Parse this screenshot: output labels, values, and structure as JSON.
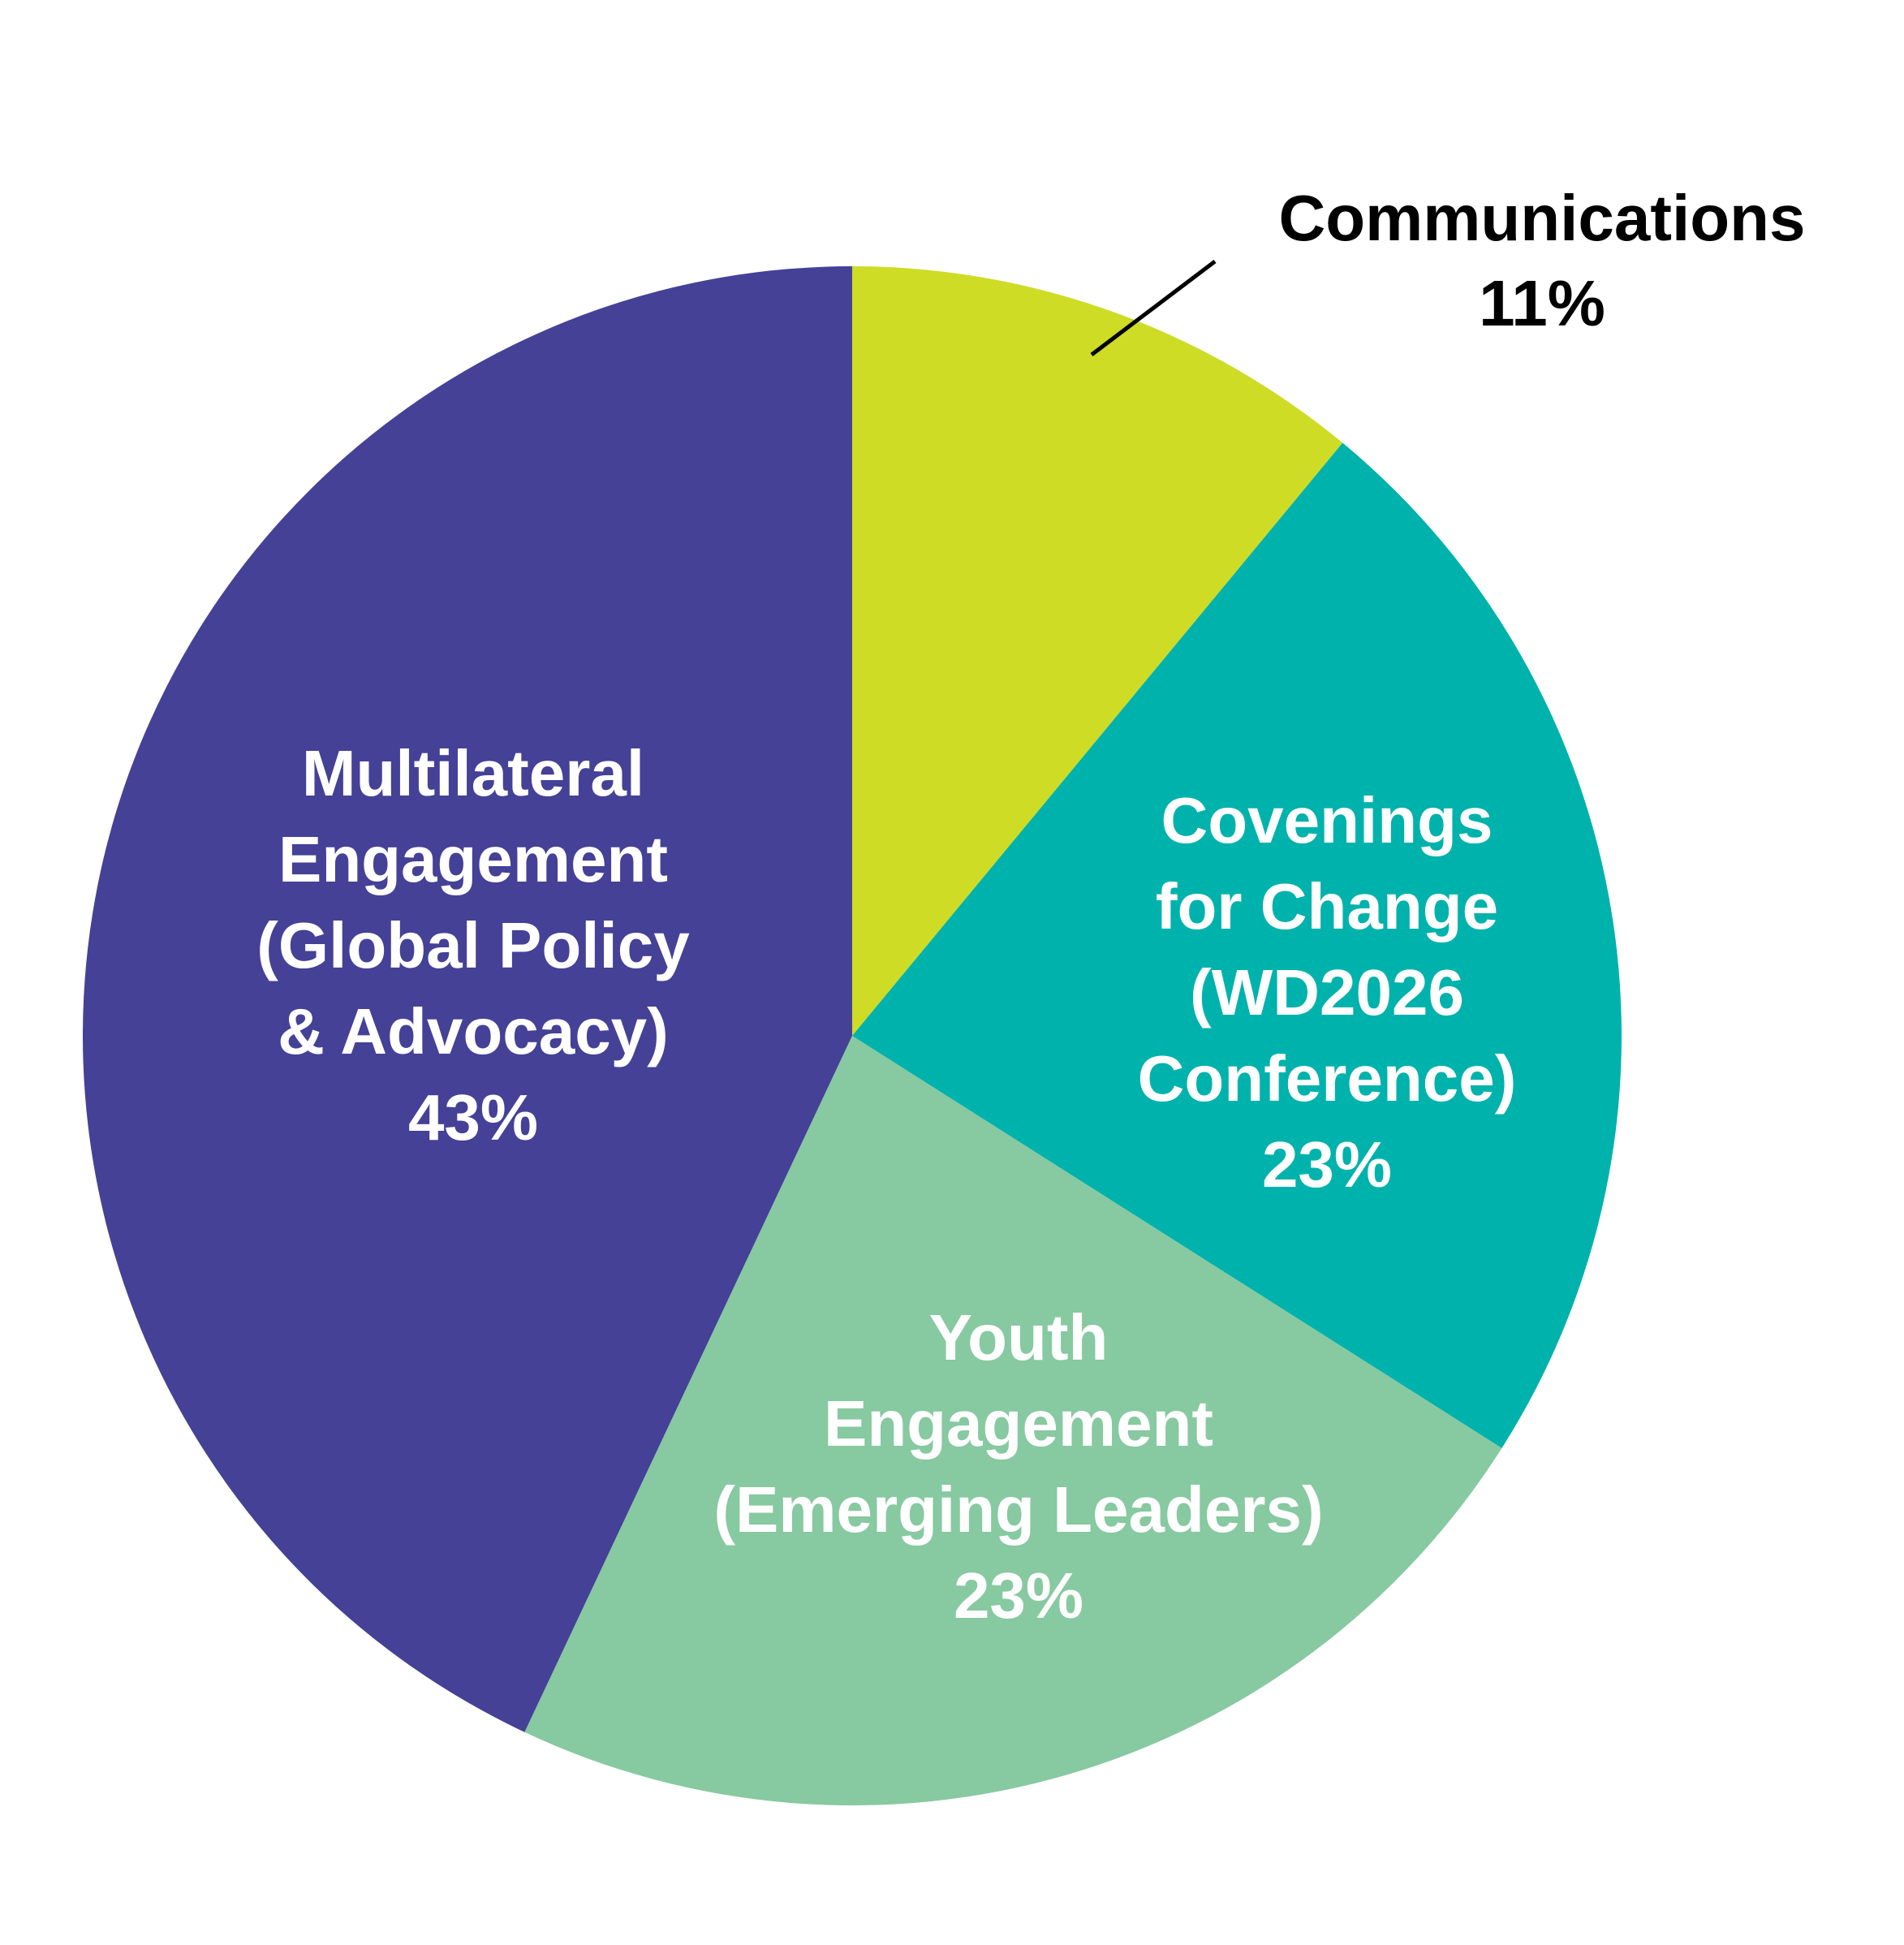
{
  "chart_data": {
    "type": "pie",
    "start_angle_deg": 0,
    "direction": "clockwise",
    "slices": [
      {
        "name": "Communications",
        "value": 11,
        "value_label": "11%",
        "color": "#cedc26",
        "label_color": "#000000",
        "label_lines": [
          "Communications"
        ],
        "label_placement": "outside-top-right"
      },
      {
        "name": "Covenings for Change (WD2026 Conference)",
        "value": 23,
        "value_label": "23%",
        "color": "#00b2ac",
        "label_color": "#ffffff",
        "label_lines": [
          "Covenings",
          "for Change",
          "(WD2026",
          "Conference)"
        ],
        "label_placement": "inside"
      },
      {
        "name": "Youth Engagement (Emerging Leaders)",
        "value": 23,
        "value_label": "23%",
        "color": "#87c9a0",
        "label_color": "#ffffff",
        "label_lines": [
          "Youth",
          "Engagement",
          "(Emerging Leaders)"
        ],
        "label_placement": "inside"
      },
      {
        "name": "Multilateral Engagement (Global Policy & Advocacy)",
        "value": 43,
        "value_label": "43%",
        "color": "#444197",
        "label_color": "#ffffff",
        "label_lines": [
          "Multilateral",
          "Engagement",
          "(Global Policy",
          "& Advocacy)"
        ],
        "label_placement": "inside"
      }
    ],
    "legend": "none"
  }
}
